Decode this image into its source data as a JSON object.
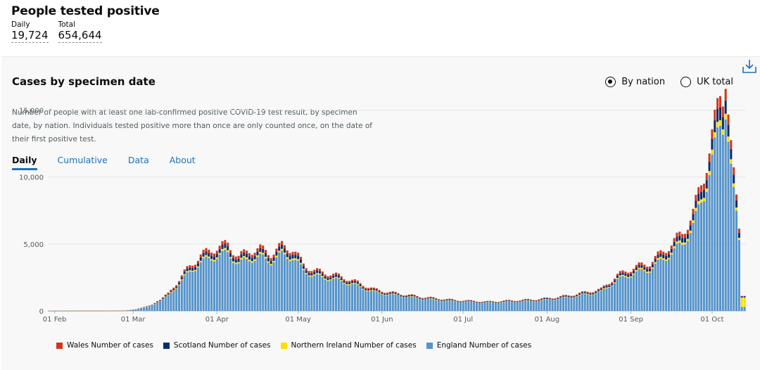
{
  "headline": {
    "title": "People tested positive",
    "daily_label": "Daily",
    "daily_value": "19,724",
    "total_label": "Total",
    "total_value": "654,644"
  },
  "card": {
    "title": "Cases by specimen date",
    "description": "Number of people with at least one lab-confirmed positive COVID-19 test result, by specimen date, by nation. Individuals tested positive more than once are only counted once, on the date of their first positive test.",
    "download_icon": "download-icon",
    "radios": [
      {
        "label": "By nation",
        "selected": true
      },
      {
        "label": "UK total",
        "selected": false
      }
    ],
    "tabs": [
      {
        "label": "Daily",
        "active": true
      },
      {
        "label": "Cumulative",
        "active": false
      },
      {
        "label": "Data",
        "active": false
      },
      {
        "label": "About",
        "active": false
      }
    ]
  },
  "chart_data": {
    "type": "bar",
    "stacked": true,
    "xlabel": "",
    "ylabel": "",
    "ylim": [
      0,
      18500
    ],
    "yticks": [
      0,
      5000,
      10000,
      15000
    ],
    "ytick_labels": [
      "0",
      "5,000",
      "10,000",
      "15,000"
    ],
    "xticks": [
      "01 Feb",
      "01 Mar",
      "01 Apr",
      "01 May",
      "01 Jun",
      "01 Jul",
      "01 Aug",
      "01 Sep",
      "01 Oct"
    ],
    "x_start": "2020-01-30",
    "grid": true,
    "legend_position": "bottom",
    "series": [
      {
        "name": "Wales Number of cases",
        "color": "#d4351c"
      },
      {
        "name": "Scotland Number of cases",
        "color": "#0b2d6b"
      },
      {
        "name": "Northern Ireland Number of cases",
        "color": "#ffdd00"
      },
      {
        "name": "England Number of cases",
        "color": "#5694ca"
      }
    ],
    "england_keypoints": [
      [
        0,
        2
      ],
      [
        28,
        10
      ],
      [
        32,
        100
      ],
      [
        38,
        400
      ],
      [
        44,
        1100
      ],
      [
        50,
        2500
      ],
      [
        56,
        3600
      ],
      [
        62,
        4100
      ],
      [
        66,
        4300
      ],
      [
        70,
        3500
      ],
      [
        74,
        3900
      ],
      [
        78,
        4000
      ],
      [
        82,
        3700
      ],
      [
        86,
        4200
      ],
      [
        90,
        4000
      ],
      [
        94,
        3000
      ],
      [
        98,
        2600
      ],
      [
        104,
        2400
      ],
      [
        110,
        2100
      ],
      [
        116,
        1700
      ],
      [
        120,
        1400
      ],
      [
        126,
        1200
      ],
      [
        132,
        1050
      ],
      [
        138,
        900
      ],
      [
        144,
        800
      ],
      [
        150,
        700
      ],
      [
        156,
        650
      ],
      [
        162,
        600
      ],
      [
        168,
        650
      ],
      [
        174,
        700
      ],
      [
        180,
        750
      ],
      [
        186,
        850
      ],
      [
        192,
        1000
      ],
      [
        198,
        1200
      ],
      [
        204,
        1400
      ],
      [
        210,
        2300
      ],
      [
        216,
        2800
      ],
      [
        222,
        3100
      ],
      [
        228,
        4000
      ],
      [
        234,
        5000
      ],
      [
        238,
        6300
      ],
      [
        242,
        8800
      ],
      [
        246,
        12000
      ],
      [
        248,
        14000
      ],
      [
        250,
        14300
      ],
      [
        252,
        11000
      ],
      [
        254,
        7500
      ],
      [
        255,
        5300
      ],
      [
        256,
        300
      ]
    ],
    "wales_fraction": 0.06,
    "scotland_fraction": 0.07,
    "ni_fraction": 0.03
  }
}
